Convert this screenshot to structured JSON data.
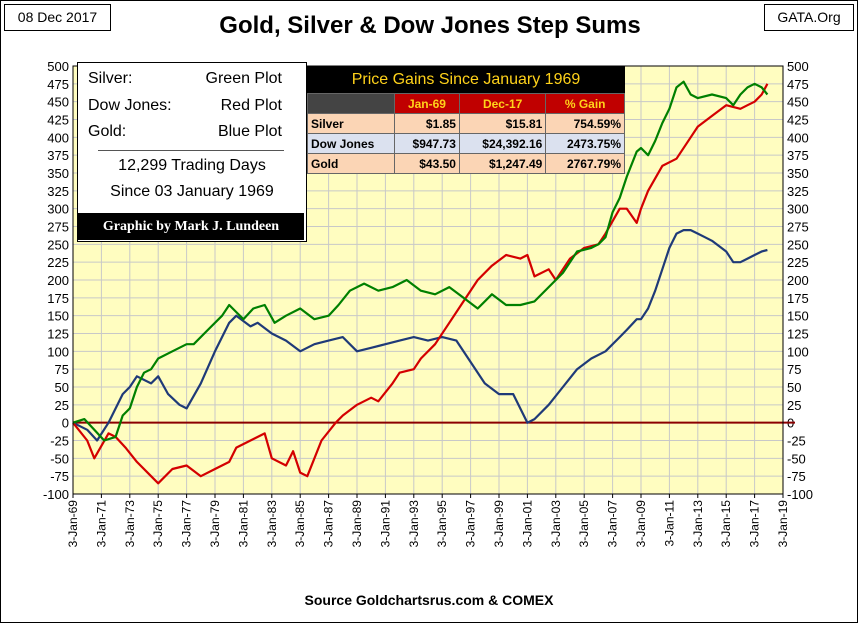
{
  "header": {
    "date": "08 Dec 2017",
    "site": "GATA.Org",
    "title": "Gold, Silver & Dow Jones Step Sums",
    "source": "Source Goldchartsrus.com & COMEX"
  },
  "legend": {
    "rows": [
      {
        "name": "Silver:",
        "plot": "Green Plot"
      },
      {
        "name": "Dow Jones:",
        "plot": "Red Plot"
      },
      {
        "name": "Gold:",
        "plot": "Blue Plot"
      }
    ],
    "days": "12,299 Trading Days",
    "since": "Since 03 January 1969",
    "credit": "Graphic by Mark J. Lundeen"
  },
  "gains_table": {
    "title": "Price Gains Since January 1969",
    "headers": [
      "Jan-69",
      "Dec-17",
      "% Gain"
    ],
    "rows": [
      {
        "name": "Silver",
        "start": "$1.85",
        "end": "$15.81",
        "gain": "754.59%"
      },
      {
        "name": "Dow Jones",
        "start": "$947.73",
        "end": "$24,392.16",
        "gain": "2473.75%"
      },
      {
        "name": "Gold",
        "start": "$43.50",
        "end": "$1,247.49",
        "gain": "2767.79%"
      }
    ]
  },
  "colors": {
    "plot_bg": "#fffdc0",
    "grid": "#c8c8c8",
    "silver": "#008000",
    "dow": "#d40000",
    "gold": "#1f3a78",
    "zero_line": "#8b0000"
  },
  "chart_data": {
    "type": "line",
    "title": "Gold, Silver & Dow Jones Step Sums",
    "xlim": [
      1969,
      2019
    ],
    "ylim": [
      -100,
      500
    ],
    "y_ticks": [
      -100,
      -75,
      -50,
      -25,
      0,
      25,
      50,
      75,
      100,
      125,
      150,
      175,
      200,
      225,
      250,
      275,
      300,
      325,
      350,
      375,
      400,
      425,
      450,
      475,
      500
    ],
    "y_tick_labels_left": [
      "-100",
      "-75",
      "-50",
      "-25",
      "0",
      "25",
      "50",
      "75",
      "100",
      "125",
      "150",
      "175",
      "200",
      "225",
      "250",
      "275",
      "300",
      "325",
      "350",
      "375",
      "400",
      "425",
      "450",
      "475",
      "500"
    ],
    "y_tick_labels_right": [
      "-100",
      "-75",
      "-50",
      "-25",
      "0",
      "25",
      "50",
      "75",
      "100",
      "125",
      "150",
      "175",
      "200",
      "225",
      "250",
      "275",
      "300",
      "325",
      "350",
      "375",
      "400",
      "425",
      "450",
      "475",
      "500"
    ],
    "x_ticks": [
      1969,
      1971,
      1973,
      1975,
      1977,
      1979,
      1981,
      1983,
      1985,
      1987,
      1989,
      1991,
      1993,
      1995,
      1997,
      1999,
      2001,
      2003,
      2005,
      2007,
      2009,
      2011,
      2013,
      2015,
      2017,
      2019
    ],
    "x_tick_labels": [
      "3-Jan-69",
      "3-Jan-71",
      "3-Jan-73",
      "3-Jan-75",
      "3-Jan-77",
      "3-Jan-79",
      "3-Jan-81",
      "3-Jan-83",
      "3-Jan-85",
      "3-Jan-87",
      "3-Jan-89",
      "3-Jan-91",
      "3-Jan-93",
      "3-Jan-95",
      "3-Jan-97",
      "3-Jan-99",
      "3-Jan-01",
      "3-Jan-03",
      "3-Jan-05",
      "3-Jan-07",
      "3-Jan-09",
      "3-Jan-11",
      "3-Jan-13",
      "3-Jan-15",
      "3-Jan-17",
      "3-Jan-19"
    ],
    "grid": true,
    "series": [
      {
        "key": "silver",
        "x": [
          1969.0,
          1969.8,
          1970.5,
          1971.2,
          1972.0,
          1972.5,
          1973.0,
          1973.5,
          1974.0,
          1974.5,
          1975.0,
          1976.0,
          1977.0,
          1977.5,
          1978.5,
          1979.5,
          1980.0,
          1980.5,
          1981.0,
          1981.7,
          1982.5,
          1983.2,
          1984.0,
          1985.0,
          1986.0,
          1987.0,
          1987.7,
          1988.5,
          1989.5,
          1990.5,
          1991.5,
          1992.5,
          1993.5,
          1994.5,
          1995.5,
          1996.5,
          1997.5,
          1998.5,
          1999.5,
          2000.5,
          2001.5,
          2002.5,
          2003.5,
          2004.5,
          2005.5,
          2006.0,
          2006.5,
          2007.0,
          2007.5,
          2008.0,
          2008.7,
          2009.0,
          2009.5,
          2010.0,
          2010.5,
          2011.0,
          2011.5,
          2012.0,
          2012.5,
          2013.0,
          2014.0,
          2015.0,
          2015.5,
          2016.0,
          2016.5,
          2017.0,
          2017.5,
          2017.9
        ],
        "y": [
          0,
          5,
          -10,
          -25,
          -20,
          10,
          20,
          50,
          70,
          75,
          90,
          100,
          110,
          110,
          130,
          150,
          165,
          155,
          145,
          160,
          165,
          140,
          150,
          160,
          145,
          150,
          165,
          185,
          195,
          185,
          190,
          200,
          185,
          180,
          190,
          175,
          160,
          180,
          165,
          165,
          170,
          190,
          210,
          240,
          245,
          250,
          260,
          295,
          315,
          345,
          380,
          385,
          375,
          395,
          420,
          440,
          470,
          478,
          460,
          455,
          460,
          455,
          445,
          460,
          470,
          475,
          470,
          460
        ]
      },
      {
        "key": "dow",
        "x": [
          1969.0,
          1970.0,
          1970.5,
          1971.5,
          1972.0,
          1972.7,
          1973.5,
          1974.5,
          1975.0,
          1976.0,
          1977.0,
          1978.0,
          1979.0,
          1980.0,
          1980.5,
          1981.5,
          1982.5,
          1983.0,
          1984.0,
          1984.5,
          1985.0,
          1985.5,
          1986.5,
          1987.5,
          1988.0,
          1989.0,
          1990.0,
          1990.5,
          1991.5,
          1992.0,
          1993.0,
          1993.5,
          1994.5,
          1995.5,
          1996.5,
          1997.5,
          1998.5,
          1999.5,
          2000.5,
          2001.0,
          2001.5,
          2002.5,
          2003.0,
          2004.0,
          2005.0,
          2006.0,
          2006.5,
          2007.5,
          2008.0,
          2008.7,
          2009.0,
          2009.5,
          2010.5,
          2011.5,
          2012.5,
          2013.0,
          2014.0,
          2015.0,
          2016.0,
          2016.5,
          2017.0,
          2017.5,
          2017.9
        ],
        "y": [
          0,
          -25,
          -50,
          -15,
          -20,
          -35,
          -55,
          -75,
          -85,
          -65,
          -60,
          -75,
          -65,
          -55,
          -35,
          -25,
          -15,
          -50,
          -60,
          -40,
          -70,
          -75,
          -25,
          0,
          10,
          25,
          35,
          30,
          55,
          70,
          75,
          90,
          110,
          140,
          170,
          200,
          220,
          235,
          230,
          235,
          205,
          215,
          200,
          230,
          245,
          250,
          265,
          300,
          300,
          280,
          300,
          325,
          360,
          370,
          400,
          415,
          430,
          445,
          440,
          445,
          450,
          460,
          475
        ]
      },
      {
        "key": "gold",
        "x": [
          1969.0,
          1970.0,
          1970.7,
          1971.5,
          1972.5,
          1973.0,
          1973.5,
          1974.5,
          1975.0,
          1975.7,
          1976.5,
          1977.0,
          1978.0,
          1979.0,
          1980.0,
          1980.5,
          1981.5,
          1982.0,
          1983.0,
          1984.0,
          1985.0,
          1986.0,
          1987.0,
          1988.0,
          1989.0,
          1990.0,
          1991.0,
          1992.0,
          1993.0,
          1994.0,
          1995.0,
          1996.0,
          1997.0,
          1998.0,
          1999.0,
          2000.0,
          2001.0,
          2001.5,
          2002.5,
          2003.5,
          2004.5,
          2005.5,
          2006.5,
          2007.5,
          2008.0,
          2008.7,
          2009.0,
          2009.5,
          2010.0,
          2010.5,
          2011.0,
          2011.5,
          2012.0,
          2012.5,
          2013.0,
          2013.5,
          2014.0,
          2015.0,
          2015.5,
          2016.0,
          2016.5,
          2017.0,
          2017.5,
          2017.9
        ],
        "y": [
          0,
          -10,
          -25,
          0,
          40,
          50,
          65,
          55,
          65,
          40,
          25,
          20,
          55,
          100,
          140,
          150,
          135,
          140,
          125,
          115,
          100,
          110,
          115,
          120,
          100,
          105,
          110,
          115,
          120,
          115,
          120,
          115,
          85,
          55,
          40,
          40,
          0,
          5,
          25,
          50,
          75,
          90,
          100,
          120,
          130,
          145,
          145,
          160,
          185,
          215,
          245,
          265,
          270,
          270,
          265,
          260,
          255,
          240,
          225,
          225,
          230,
          235,
          240,
          242
        ]
      }
    ]
  }
}
